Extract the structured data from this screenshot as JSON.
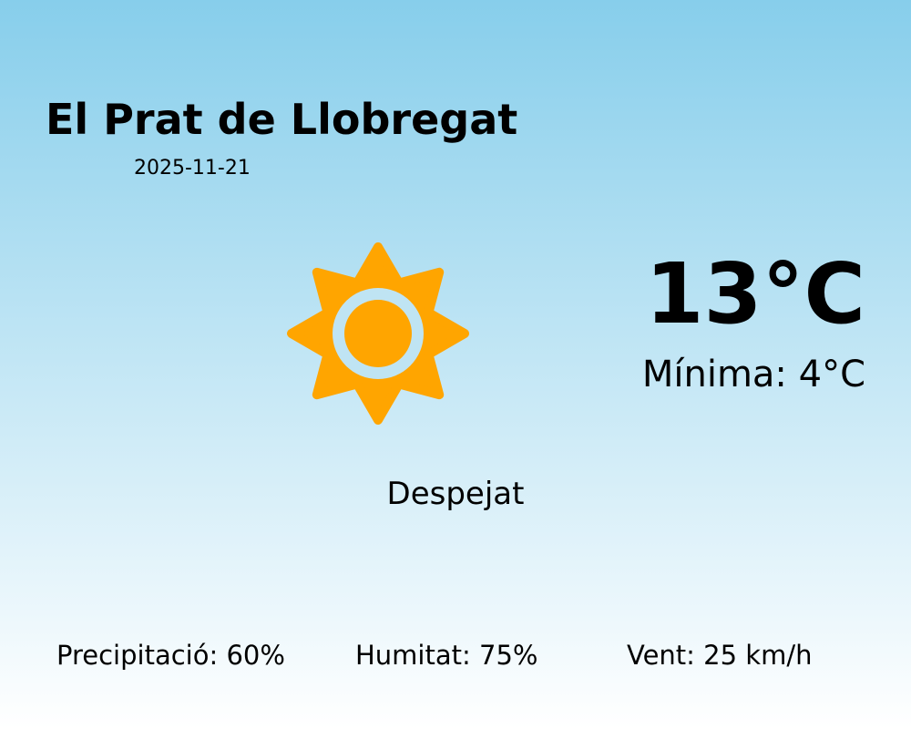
{
  "location": {
    "city": "El Prat de Llobregat",
    "date": "2025-11-21"
  },
  "current": {
    "temperature": "13°C",
    "minimum": "Mínima: 4°C",
    "condition": "Despejat",
    "icon": "sun-icon"
  },
  "stats": {
    "precipitation": "Precipitació: 60%",
    "humidity": "Humitat: 75%",
    "wind": "Vent: 25 km/h"
  },
  "colors": {
    "sun": "#FFA500",
    "sky_top": "#87CEEB",
    "sky_bottom": "#FFFFFF"
  }
}
